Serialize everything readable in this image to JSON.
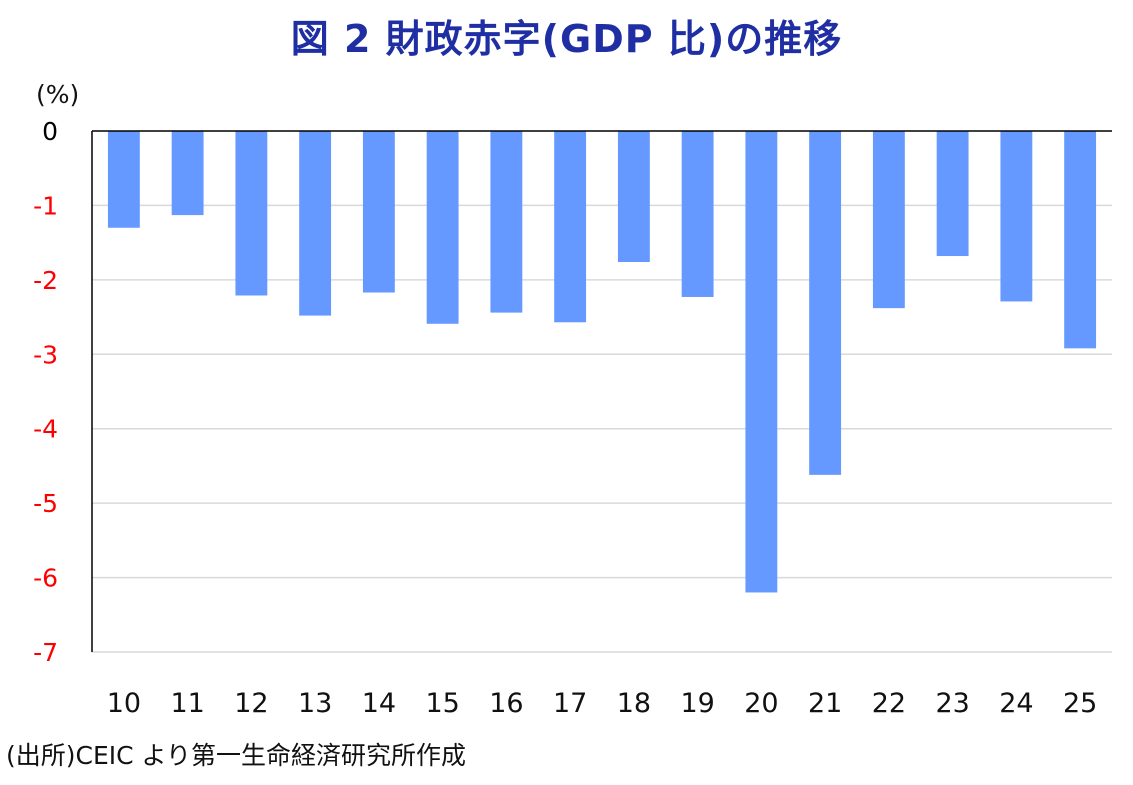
{
  "chart_data": {
    "type": "bar",
    "title": "図 2 財政赤字(GDP 比)の推移",
    "ylabel": "(%)",
    "xlabel": "",
    "categories": [
      "10",
      "11",
      "12",
      "13",
      "14",
      "15",
      "16",
      "17",
      "18",
      "19",
      "20",
      "21",
      "22",
      "23",
      "24",
      "25"
    ],
    "values": [
      -1.3,
      -1.13,
      -2.21,
      -2.48,
      -2.17,
      -2.59,
      -2.44,
      -2.57,
      -1.76,
      -2.23,
      -6.2,
      -4.62,
      -2.38,
      -1.68,
      -2.29,
      -2.92
    ],
    "ylim": [
      -7,
      0
    ],
    "yticks": [
      "0",
      "-1",
      "-2",
      "-3",
      "-4",
      "-5",
      "-6",
      "-7"
    ],
    "grid": true,
    "colors": {
      "bar": "#6699ff",
      "title": "#1f2fa3",
      "zero_tick": "#000000",
      "negative_tick": "#ff0000",
      "grid": "#d9d9d9",
      "axis": "#000000"
    }
  },
  "source": "(出所)CEIC より第一生命経済研究所作成"
}
